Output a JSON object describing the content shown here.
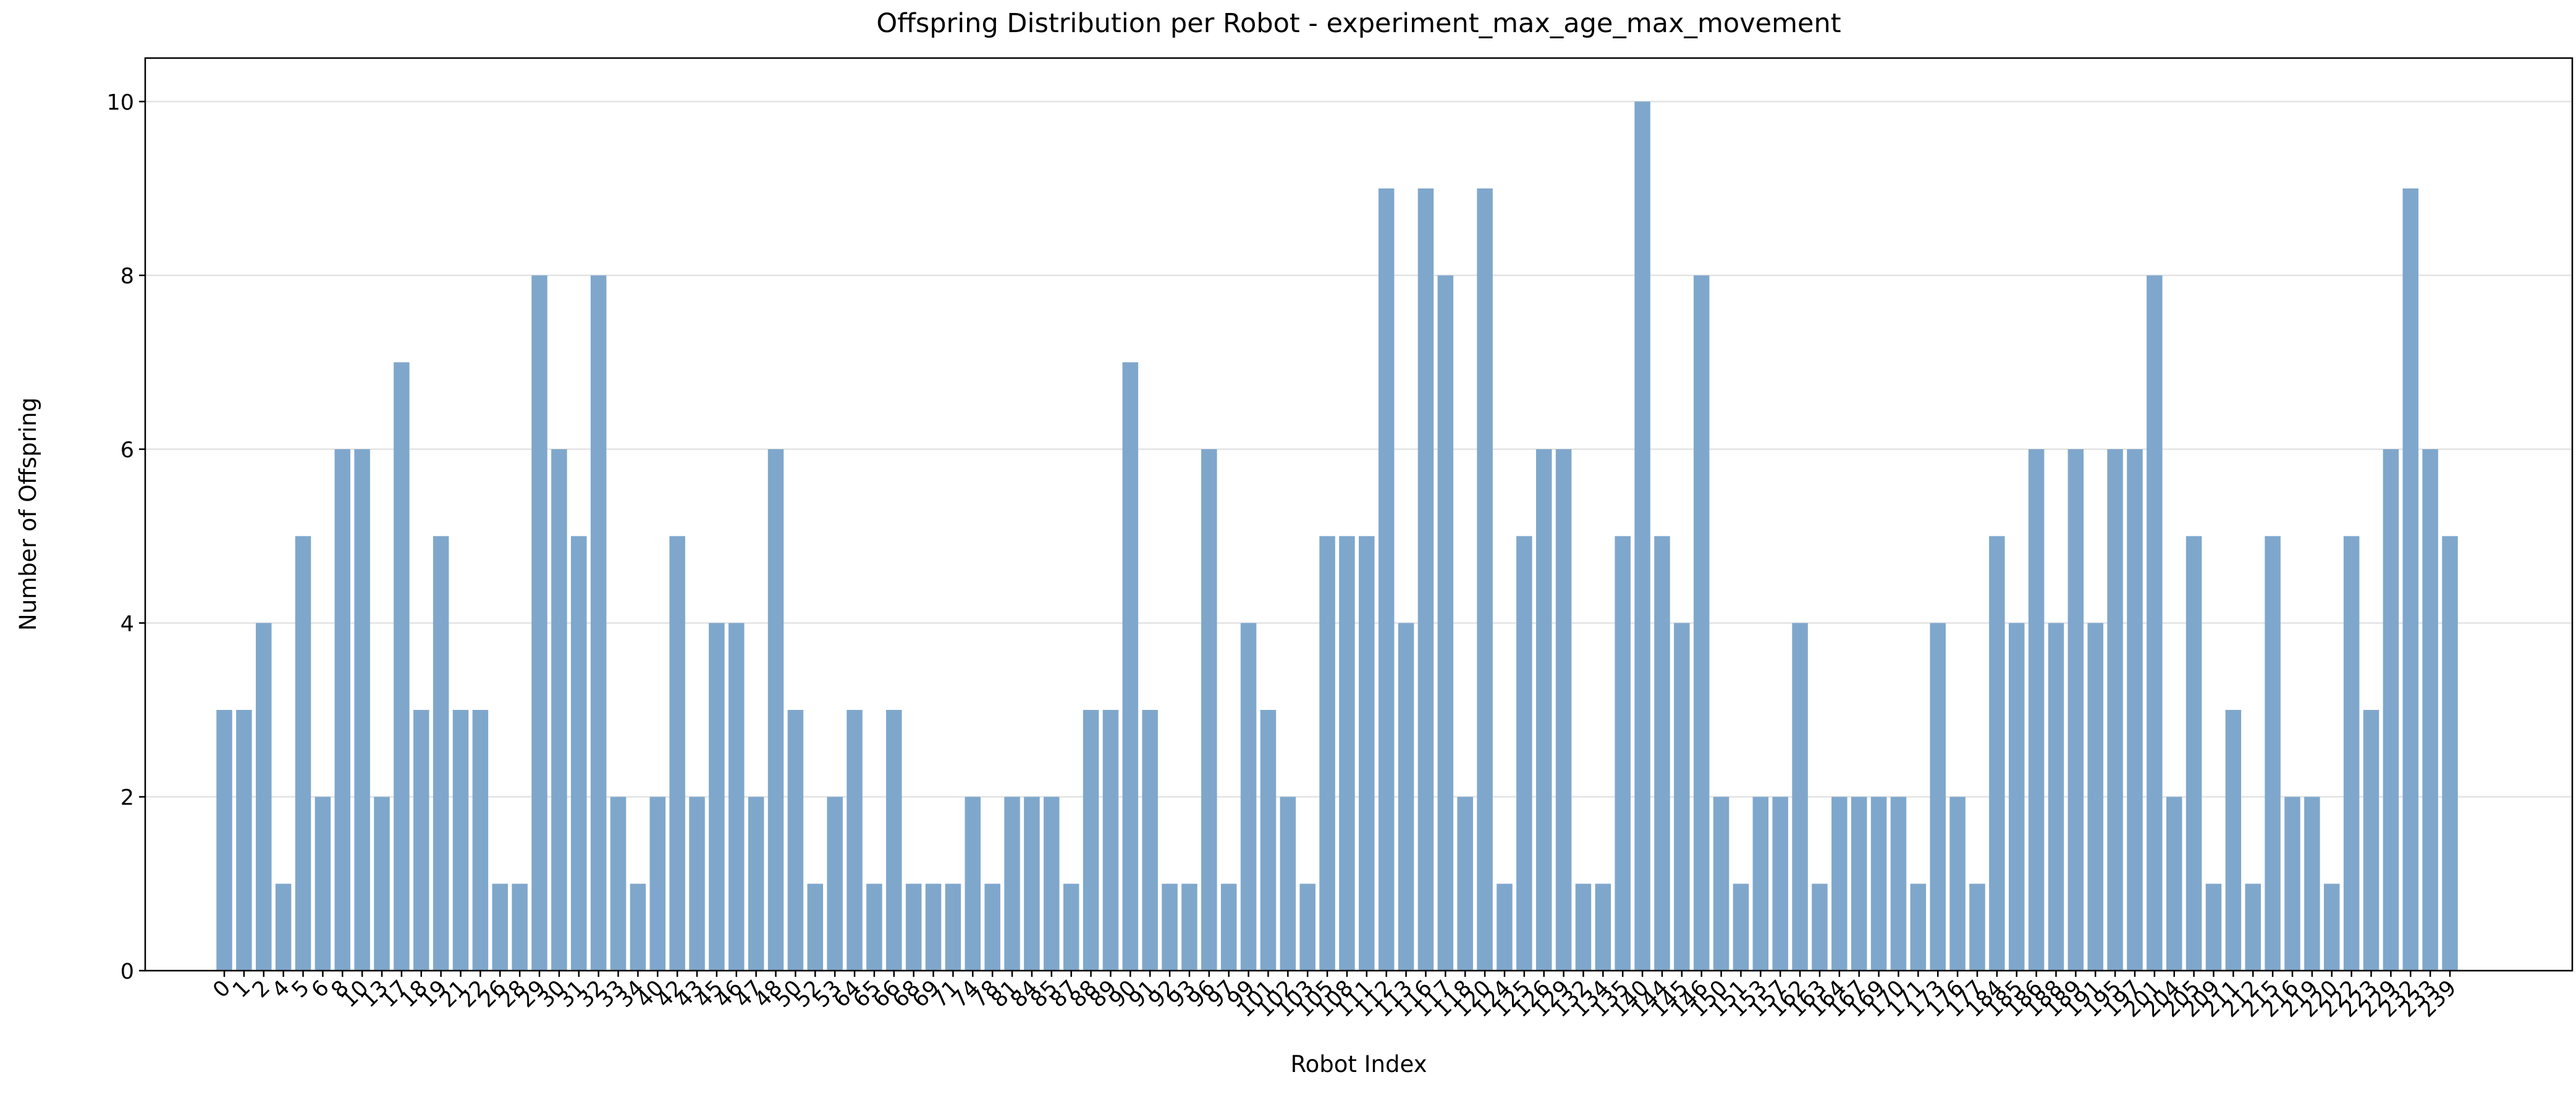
{
  "chart_data": {
    "type": "bar",
    "title": "Offspring Distribution per Robot - experiment_max_age_max_movement",
    "x_label": "Robot Index",
    "y_label": "Number of Offspring",
    "categories": [
      "0",
      "1",
      "2",
      "4",
      "5",
      "6",
      "8",
      "10",
      "13",
      "17",
      "18",
      "19",
      "21",
      "22",
      "26",
      "28",
      "29",
      "30",
      "31",
      "32",
      "33",
      "34",
      "40",
      "42",
      "43",
      "45",
      "46",
      "47",
      "48",
      "50",
      "52",
      "53",
      "64",
      "65",
      "66",
      "68",
      "69",
      "71",
      "74",
      "78",
      "81",
      "84",
      "85",
      "87",
      "88",
      "89",
      "90",
      "91",
      "92",
      "93",
      "96",
      "97",
      "99",
      "101",
      "102",
      "103",
      "105",
      "108",
      "111",
      "112",
      "113",
      "116",
      "117",
      "118",
      "120",
      "124",
      "125",
      "126",
      "129",
      "132",
      "134",
      "135",
      "140",
      "144",
      "145",
      "146",
      "150",
      "151",
      "153",
      "157",
      "162",
      "163",
      "164",
      "167",
      "169",
      "170",
      "171",
      "173",
      "176",
      "177",
      "184",
      "185",
      "186",
      "188",
      "189",
      "191",
      "195",
      "197",
      "201",
      "204",
      "205",
      "209",
      "211",
      "212",
      "215",
      "216",
      "219",
      "220",
      "222",
      "223",
      "229",
      "232",
      "233",
      "239"
    ],
    "values": [
      3,
      3,
      4,
      1,
      5,
      2,
      6,
      6,
      2,
      7,
      3,
      5,
      3,
      3,
      1,
      1,
      8,
      6,
      5,
      8,
      2,
      1,
      2,
      5,
      2,
      4,
      4,
      2,
      6,
      3,
      1,
      2,
      3,
      1,
      3,
      1,
      1,
      1,
      2,
      1,
      2,
      2,
      2,
      1,
      3,
      3,
      7,
      3,
      1,
      1,
      6,
      1,
      4,
      3,
      2,
      1,
      5,
      5,
      5,
      9,
      4,
      9,
      8,
      2,
      9,
      1,
      5,
      6,
      6,
      1,
      1,
      5,
      10,
      5,
      4,
      8,
      2,
      1,
      2,
      2,
      4,
      1,
      2,
      2,
      2,
      2,
      1,
      4,
      2,
      1,
      5,
      4,
      6,
      4,
      6,
      4,
      6,
      6,
      8,
      2,
      5,
      1,
      3,
      1,
      5,
      2,
      2,
      1,
      5,
      3,
      6,
      9,
      6,
      5
    ],
    "color": "#7fa7cc",
    "ylim": [
      0,
      10.5
    ],
    "yticks": [
      0,
      2,
      4,
      6,
      8,
      10
    ],
    "grid": true
  }
}
